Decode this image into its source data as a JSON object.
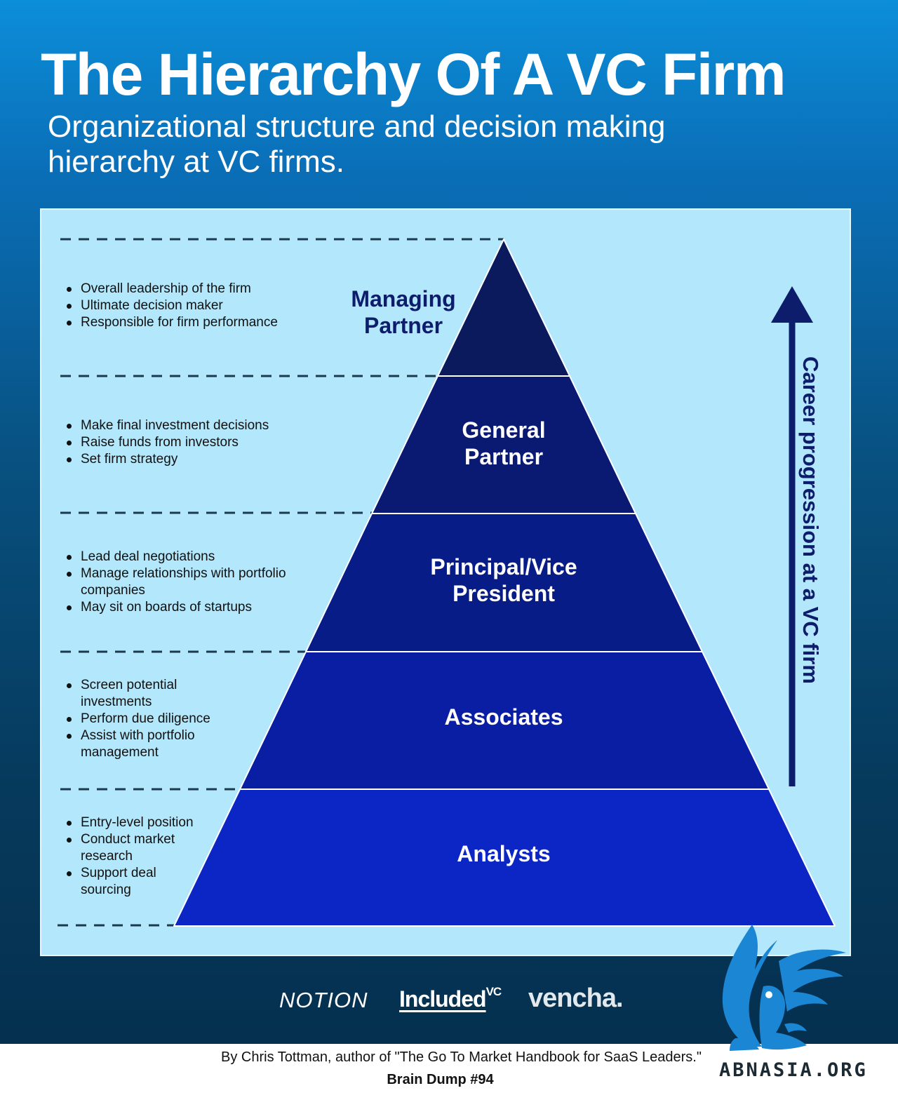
{
  "header": {
    "title": "The Hierarchy Of A VC Firm",
    "subtitle": "Organizational structure and decision making hierarchy at VC firms."
  },
  "axis_label": "Career progression at a VC firm",
  "levels": [
    {
      "name": "Managing Partner",
      "name_lines": [
        "Managing",
        "Partner"
      ],
      "color": "#0b1a5c",
      "bullets": [
        "Overall leadership of the firm",
        "Ultimate decision maker",
        "Responsible for firm performance"
      ]
    },
    {
      "name": "General Partner",
      "name_lines": [
        "General",
        "Partner"
      ],
      "color": "#0a1a72",
      "bullets": [
        "Make final investment decisions",
        "Raise funds from investors",
        "Set firm strategy"
      ]
    },
    {
      "name": "Principal/Vice President",
      "name_lines": [
        "Principal/Vice",
        "President"
      ],
      "color": "#081c88",
      "bullets": [
        "Lead deal negotiations",
        "Manage relationships with portfolio companies",
        "May sit on boards of startups"
      ]
    },
    {
      "name": "Associates",
      "name_lines": [
        "Associates"
      ],
      "color": "#0a1ea4",
      "bullets": [
        "Screen potential investments",
        "Perform due diligence",
        "Assist with portfolio management"
      ]
    },
    {
      "name": "Analysts",
      "name_lines": [
        "Analysts"
      ],
      "color": "#0b26c4",
      "bullets": [
        "Entry-level position",
        "Conduct market research",
        "Support deal sourcing"
      ]
    }
  ],
  "logos": {
    "notion": "NOTION",
    "included": "Included",
    "included_sup": "VC",
    "vencha": "vencha."
  },
  "footer": {
    "credit": "By Chris Tottman, author of \"The Go To Market Handbook for SaaS Leaders.\"",
    "issue": "Brain Dump #94"
  },
  "watermark": {
    "text": "ABNASIA.ORG",
    "icon": "griffin-icon",
    "color": "#1a86d4"
  }
}
